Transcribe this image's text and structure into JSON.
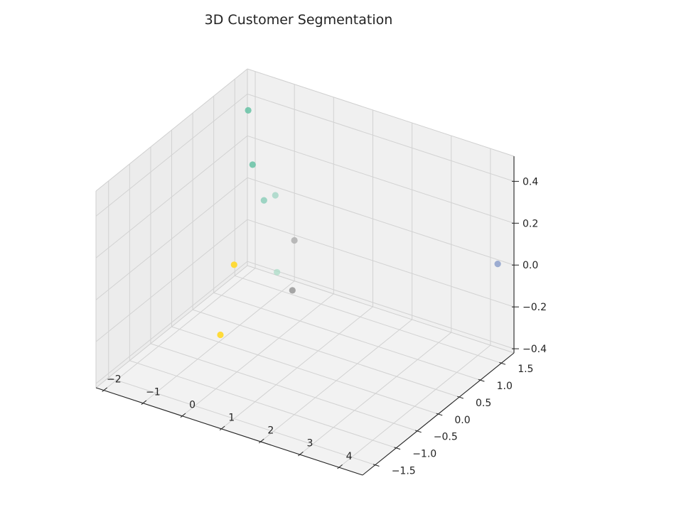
{
  "chart_data": {
    "type": "scatter",
    "projection": "3d",
    "title": "3D Customer Segmentation",
    "xlabel": "",
    "ylabel": "",
    "zlabel": "",
    "grid": true,
    "xlim": [
      -2.2,
      4.6
    ],
    "ylim": [
      -1.8,
      1.8
    ],
    "zlim": [
      -0.42,
      0.52
    ],
    "x_ticks": [
      -2,
      -1,
      0,
      1,
      2,
      3,
      4
    ],
    "x_tick_labels": [
      "−2",
      "−1",
      "0",
      "1",
      "2",
      "3",
      "4"
    ],
    "y_ticks": [
      -1.5,
      -1.0,
      -0.5,
      0.0,
      0.5,
      1.0,
      1.5
    ],
    "y_tick_labels": [
      "−1.5",
      "−1.0",
      "−0.5",
      "0.0",
      "0.5",
      "1.0",
      "1.5"
    ],
    "z_ticks": [
      -0.4,
      -0.2,
      0.0,
      0.2,
      0.4
    ],
    "z_tick_labels": [
      "−0.4",
      "−0.2",
      "0.0",
      "0.2",
      "0.4"
    ],
    "points": [
      {
        "x": -1.3,
        "y": 0.98,
        "z": 0.51,
        "color": "#66c2a5",
        "opacity": 0.85
      },
      {
        "x": -1.08,
        "y": 0.88,
        "z": 0.28,
        "color": "#66c2a5",
        "opacity": 0.85
      },
      {
        "x": -0.92,
        "y": 1.0,
        "z": 0.1,
        "color": "#66c2a5",
        "opacity": 0.6
      },
      {
        "x": -0.78,
        "y": 1.14,
        "z": 0.11,
        "color": "#66c2a5",
        "opacity": 0.45
      },
      {
        "x": -0.55,
        "y": 1.38,
        "z": -0.13,
        "color": "#b3b3b3",
        "opacity": 0.9
      },
      {
        "x": -0.48,
        "y": 0.9,
        "z": -0.2,
        "color": "#a6dcc4",
        "opacity": 0.7
      },
      {
        "x": 0.02,
        "y": 0.8,
        "z": -0.24,
        "color": "#a0a0a0",
        "opacity": 0.95
      },
      {
        "x": -1.52,
        "y": 0.85,
        "z": -0.22,
        "color": "#ffd92f",
        "opacity": 0.95
      },
      {
        "x": -0.85,
        "y": -0.1,
        "z": -0.36,
        "color": "#ffd92f",
        "opacity": 0.95
      },
      {
        "x": 4.56,
        "y": 1.45,
        "z": 0.06,
        "color": "#8da0cb",
        "opacity": 0.85
      }
    ]
  }
}
